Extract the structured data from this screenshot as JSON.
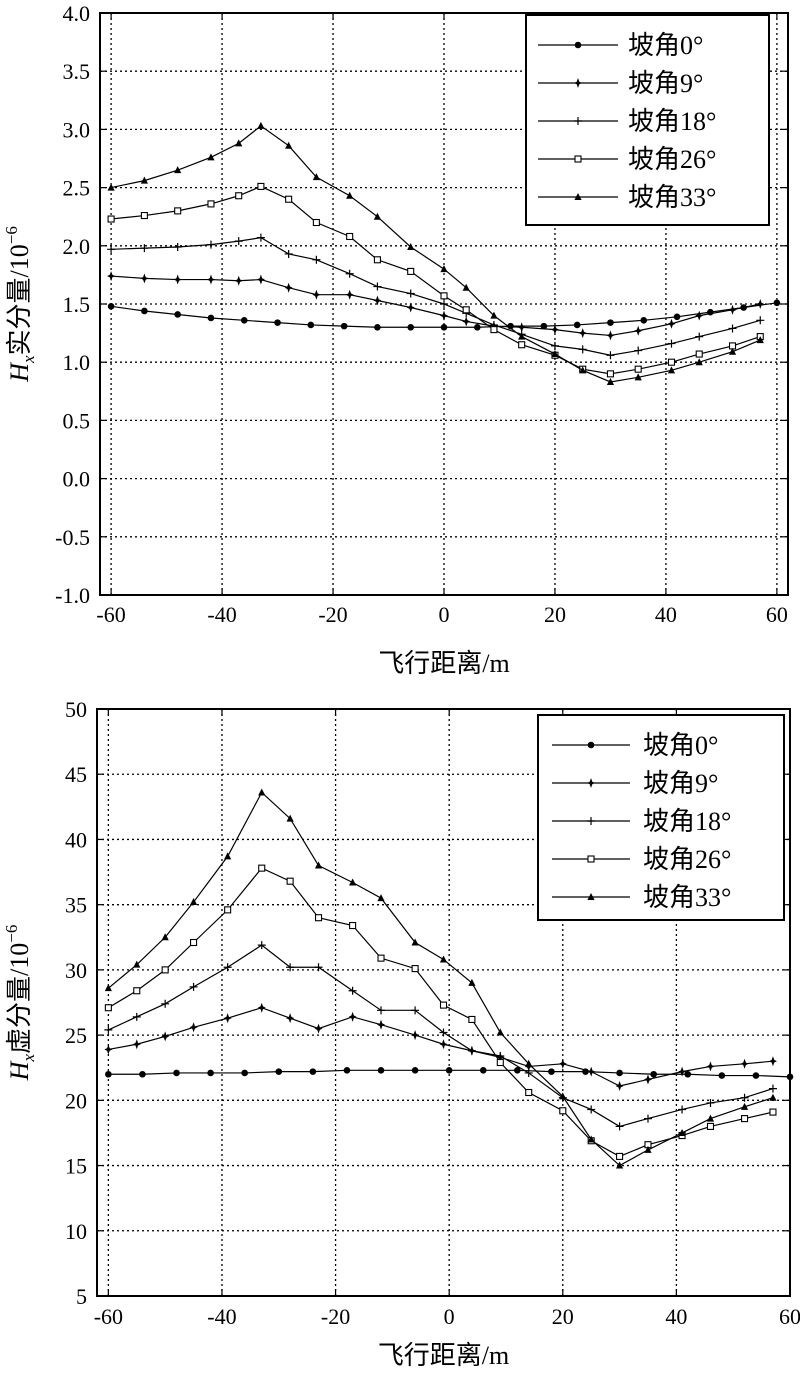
{
  "chart_data": [
    {
      "type": "line",
      "xlabel": "飞行距离/m",
      "ylabel_main": "H",
      "ylabel_sub": "x",
      "ylabel_rest": "实分量/10",
      "ylabel_exp": "−6",
      "xlim": [
        -62,
        62
      ],
      "ylim": [
        -1.0,
        4.0
      ],
      "xticks": [
        -60,
        -40,
        -20,
        0,
        20,
        40,
        60
      ],
      "xtick_labels": [
        "-60",
        "-40",
        "-20",
        "0",
        "20",
        "40",
        "60"
      ],
      "yticks": [
        -1.0,
        -0.5,
        0.0,
        0.5,
        1.0,
        1.5,
        2.0,
        2.5,
        3.0,
        3.5,
        4.0
      ],
      "ytick_labels": [
        "-1.0",
        "-0.5",
        "0.0",
        "0.5",
        "1.0",
        "1.5",
        "2.0",
        "2.5",
        "3.0",
        "3.5",
        "4.0"
      ],
      "grid": true,
      "legend_position": "top-right",
      "series": [
        {
          "name": "坡角0°",
          "marker": "circle",
          "x": [
            -60,
            -54,
            -48,
            -42,
            -36,
            -30,
            -24,
            -18,
            -12,
            -6,
            0,
            6,
            12,
            18,
            24,
            30,
            36,
            42,
            48,
            54,
            60
          ],
          "y": [
            1.48,
            1.44,
            1.41,
            1.38,
            1.36,
            1.34,
            1.32,
            1.31,
            1.3,
            1.3,
            1.3,
            1.3,
            1.31,
            1.31,
            1.32,
            1.34,
            1.36,
            1.39,
            1.43,
            1.47,
            1.51
          ]
        },
        {
          "name": "坡角9°",
          "marker": "star4",
          "x": [
            -60,
            -54,
            -48,
            -42,
            -37,
            -33,
            -28,
            -23,
            -17,
            -12,
            -6,
            0,
            4,
            9,
            14,
            20,
            25,
            30,
            35,
            41,
            46,
            52,
            57
          ],
          "y": [
            1.74,
            1.72,
            1.71,
            1.71,
            1.7,
            1.71,
            1.64,
            1.58,
            1.58,
            1.53,
            1.47,
            1.4,
            1.35,
            1.31,
            1.3,
            1.28,
            1.25,
            1.23,
            1.27,
            1.33,
            1.4,
            1.45,
            1.5
          ]
        },
        {
          "name": "坡角18°",
          "marker": "plus",
          "x": [
            -60,
            -54,
            -48,
            -42,
            -37,
            -33,
            -28,
            -23,
            -17,
            -12,
            -6,
            0,
            4,
            9,
            14,
            20,
            25,
            30,
            35,
            41,
            46,
            52,
            57
          ],
          "y": [
            1.97,
            1.98,
            1.99,
            2.01,
            2.04,
            2.07,
            1.93,
            1.88,
            1.76,
            1.65,
            1.59,
            1.5,
            1.42,
            1.32,
            1.24,
            1.14,
            1.11,
            1.06,
            1.1,
            1.16,
            1.22,
            1.29,
            1.36
          ]
        },
        {
          "name": "坡角26°",
          "marker": "square",
          "x": [
            -60,
            -54,
            -48,
            -42,
            -37,
            -33,
            -28,
            -23,
            -17,
            -12,
            -6,
            0,
            4,
            9,
            14,
            20,
            25,
            30,
            35,
            41,
            46,
            52,
            57
          ],
          "y": [
            2.23,
            2.26,
            2.3,
            2.36,
            2.43,
            2.51,
            2.4,
            2.2,
            2.08,
            1.88,
            1.78,
            1.57,
            1.45,
            1.28,
            1.15,
            1.06,
            0.94,
            0.9,
            0.94,
            1.0,
            1.07,
            1.14,
            1.22
          ]
        },
        {
          "name": "坡角33°",
          "marker": "triangle",
          "x": [
            -60,
            -54,
            -48,
            -42,
            -37,
            -33,
            -28,
            -23,
            -17,
            -12,
            -6,
            0,
            4,
            9,
            14,
            20,
            25,
            30,
            35,
            41,
            46,
            52,
            57
          ],
          "y": [
            2.5,
            2.56,
            2.65,
            2.76,
            2.88,
            3.03,
            2.86,
            2.59,
            2.43,
            2.25,
            1.99,
            1.8,
            1.64,
            1.4,
            1.22,
            1.07,
            0.93,
            0.83,
            0.87,
            0.93,
            1.0,
            1.09,
            1.19
          ]
        }
      ]
    },
    {
      "type": "line",
      "xlabel": "飞行距离/m",
      "ylabel_main": "H",
      "ylabel_sub": "x",
      "ylabel_rest": "虚分量/10",
      "ylabel_exp": "−6",
      "xlim": [
        -62,
        60
      ],
      "ylim": [
        5,
        50
      ],
      "xticks": [
        -60,
        -40,
        -20,
        0,
        20,
        40,
        60
      ],
      "xtick_labels": [
        "-60",
        "-40",
        "-20",
        "0",
        "20",
        "40",
        "60"
      ],
      "yticks": [
        5,
        10,
        15,
        20,
        25,
        30,
        35,
        40,
        45,
        50
      ],
      "ytick_labels": [
        "5",
        "10",
        "15",
        "20",
        "25",
        "30",
        "35",
        "40",
        "45",
        "50"
      ],
      "grid": true,
      "legend_position": "top-right",
      "series": [
        {
          "name": "坡角0°",
          "marker": "circle",
          "x": [
            -60,
            -54,
            -48,
            -42,
            -36,
            -30,
            -24,
            -18,
            -12,
            -6,
            0,
            6,
            12,
            18,
            24,
            30,
            36,
            42,
            48,
            54,
            60
          ],
          "y": [
            22.0,
            22.0,
            22.1,
            22.1,
            22.1,
            22.2,
            22.2,
            22.3,
            22.3,
            22.3,
            22.3,
            22.3,
            22.3,
            22.2,
            22.2,
            22.1,
            22.0,
            22.0,
            21.9,
            21.9,
            21.8
          ]
        },
        {
          "name": "坡角9°",
          "marker": "star4",
          "x": [
            -60,
            -55,
            -50,
            -45,
            -39,
            -33,
            -28,
            -23,
            -17,
            -12,
            -6,
            -1,
            4,
            9,
            14,
            20,
            25,
            30,
            35,
            41,
            46,
            52,
            57
          ],
          "y": [
            23.9,
            24.3,
            24.9,
            25.6,
            26.3,
            27.1,
            26.3,
            25.5,
            26.4,
            25.8,
            25.0,
            24.3,
            23.8,
            23.3,
            22.6,
            22.8,
            22.2,
            21.1,
            21.6,
            22.2,
            22.6,
            22.8,
            23.0
          ]
        },
        {
          "name": "坡角18°",
          "marker": "plus",
          "x": [
            -60,
            -55,
            -50,
            -45,
            -39,
            -33,
            -28,
            -23,
            -17,
            -12,
            -6,
            -1,
            4,
            9,
            14,
            20,
            25,
            30,
            35,
            41,
            46,
            52,
            57
          ],
          "y": [
            25.4,
            26.4,
            27.4,
            28.7,
            30.2,
            31.9,
            30.2,
            30.2,
            28.4,
            26.9,
            26.9,
            25.2,
            23.8,
            23.4,
            22.1,
            20.2,
            19.3,
            18.0,
            18.6,
            19.3,
            19.8,
            20.2,
            20.9
          ]
        },
        {
          "name": "坡角26°",
          "marker": "square",
          "x": [
            -60,
            -55,
            -50,
            -45,
            -39,
            -33,
            -28,
            -23,
            -17,
            -12,
            -6,
            -1,
            4,
            9,
            14,
            20,
            25,
            30,
            35,
            41,
            46,
            52,
            57
          ],
          "y": [
            27.1,
            28.4,
            30.0,
            32.1,
            34.6,
            37.8,
            36.8,
            34.0,
            33.4,
            30.9,
            30.1,
            27.3,
            26.2,
            22.9,
            20.6,
            19.2,
            16.9,
            15.7,
            16.6,
            17.3,
            18.0,
            18.6,
            19.1
          ]
        },
        {
          "name": "坡角33°",
          "marker": "triangle",
          "x": [
            -60,
            -55,
            -50,
            -45,
            -39,
            -33,
            -28,
            -23,
            -17,
            -12,
            -6,
            -1,
            4,
            9,
            14,
            20,
            25,
            30,
            35,
            41,
            46,
            52,
            57
          ],
          "y": [
            28.6,
            30.4,
            32.5,
            35.2,
            38.7,
            43.6,
            41.6,
            38.0,
            36.7,
            35.5,
            32.1,
            30.8,
            29.0,
            25.2,
            22.8,
            20.3,
            17.0,
            15.0,
            16.2,
            17.5,
            18.6,
            19.5,
            20.2
          ]
        }
      ]
    }
  ]
}
